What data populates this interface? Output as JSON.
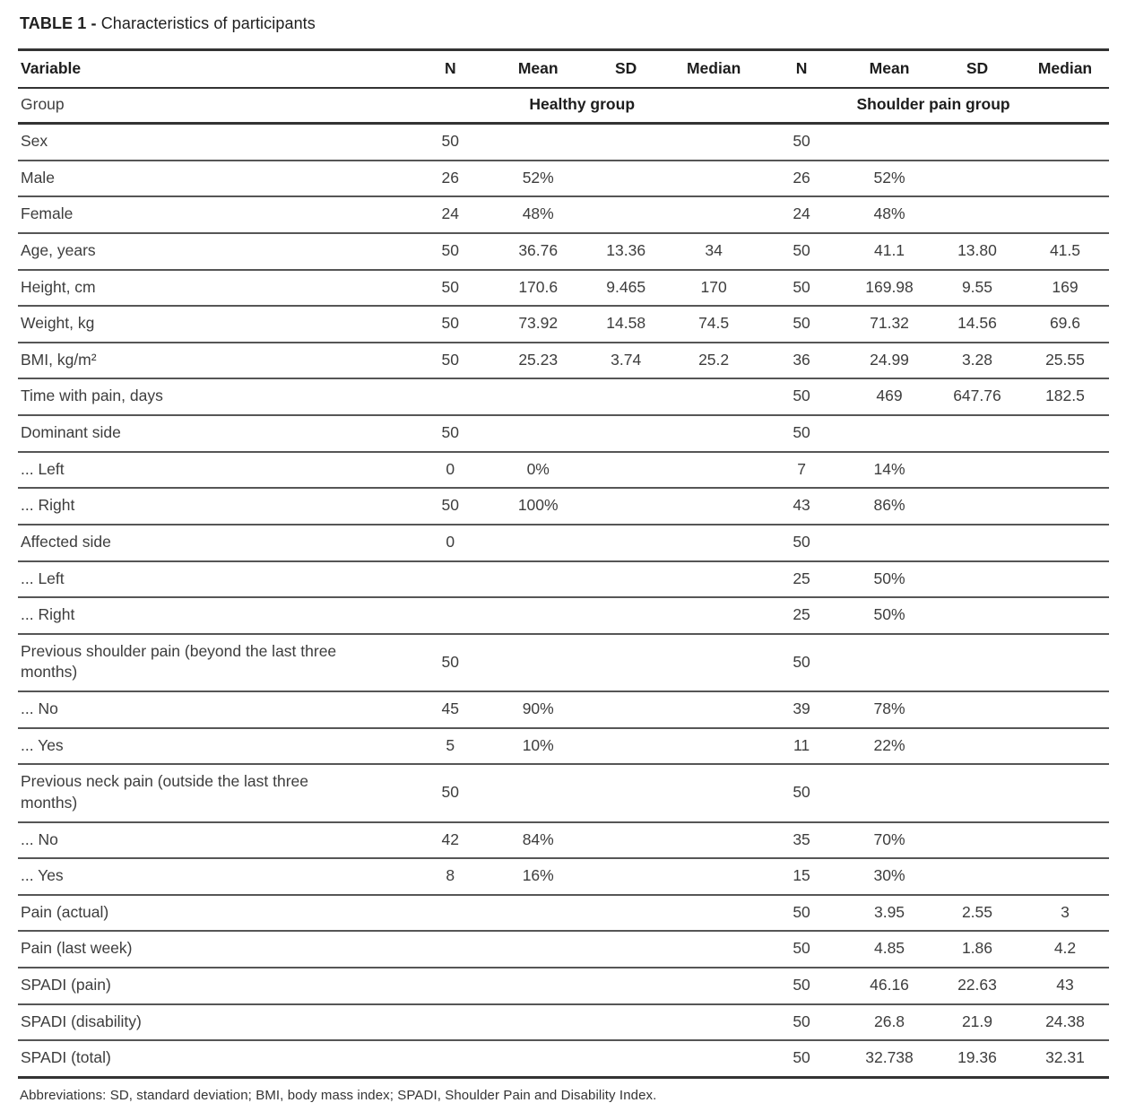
{
  "title": {
    "label": "TABLE 1 -",
    "text": "Characteristics of participants"
  },
  "table": {
    "columns": [
      "Variable",
      "N",
      "Mean",
      "SD",
      "Median",
      "N",
      "Mean",
      "SD",
      "Median"
    ],
    "group_row": {
      "label": "Group",
      "groups": [
        "Healthy group",
        "Shoulder pain group"
      ]
    },
    "rows": [
      {
        "cells": [
          "Sex",
          "50",
          "",
          "",
          "",
          "50",
          "",
          "",
          ""
        ]
      },
      {
        "cells": [
          "Male",
          "26",
          "52%",
          "",
          "",
          "26",
          "52%",
          "",
          ""
        ]
      },
      {
        "cells": [
          "Female",
          "24",
          "48%",
          "",
          "",
          "24",
          "48%",
          "",
          ""
        ]
      },
      {
        "cells": [
          "Age, years",
          "50",
          "36.76",
          "13.36",
          "34",
          "50",
          "41.1",
          "13.80",
          "41.5"
        ]
      },
      {
        "cells": [
          "Height, cm",
          "50",
          "170.6",
          "9.465",
          "170",
          "50",
          "169.98",
          "9.55",
          "169"
        ]
      },
      {
        "cells": [
          "Weight, kg",
          "50",
          "73.92",
          "14.58",
          "74.5",
          "50",
          "71.32",
          "14.56",
          "69.6"
        ]
      },
      {
        "cells": [
          "BMI, kg/m²",
          "50",
          "25.23",
          "3.74",
          "25.2",
          "36",
          "24.99",
          "3.28",
          "25.55"
        ]
      },
      {
        "cells": [
          "Time with pain, days",
          "",
          "",
          "",
          "",
          "50",
          "469",
          "647.76",
          "182.5"
        ]
      },
      {
        "cells": [
          "Dominant side",
          "50",
          "",
          "",
          "",
          "50",
          "",
          "",
          ""
        ]
      },
      {
        "cells": [
          "... Left",
          "0",
          "0%",
          "",
          "",
          "7",
          "14%",
          "",
          ""
        ]
      },
      {
        "cells": [
          "... Right",
          "50",
          "100%",
          "",
          "",
          "43",
          "86%",
          "",
          ""
        ]
      },
      {
        "cells": [
          "Affected side",
          "0",
          "",
          "",
          "",
          "50",
          "",
          "",
          ""
        ]
      },
      {
        "cells": [
          "... Left",
          "",
          "",
          "",
          "",
          "25",
          "50%",
          "",
          ""
        ]
      },
      {
        "cells": [
          "... Right",
          "",
          "",
          "",
          "",
          "25",
          "50%",
          "",
          ""
        ]
      },
      {
        "cells": [
          "Previous shoulder pain (beyond the last three months)",
          "50",
          "",
          "",
          "",
          "50",
          "",
          "",
          ""
        ]
      },
      {
        "cells": [
          "... No",
          "45",
          "90%",
          "",
          "",
          "39",
          "78%",
          "",
          ""
        ]
      },
      {
        "cells": [
          "... Yes",
          "5",
          "10%",
          "",
          "",
          "11",
          "22%",
          "",
          ""
        ]
      },
      {
        "cells": [
          "Previous neck pain (outside the last three months)",
          "50",
          "",
          "",
          "",
          "50",
          "",
          "",
          ""
        ]
      },
      {
        "cells": [
          "... No",
          "42",
          "84%",
          "",
          "",
          "35",
          "70%",
          "",
          ""
        ]
      },
      {
        "cells": [
          "... Yes",
          "8",
          "16%",
          "",
          "",
          "15",
          "30%",
          "",
          ""
        ]
      },
      {
        "cells": [
          "Pain (actual)",
          "",
          "",
          "",
          "",
          "50",
          "3.95",
          "2.55",
          "3"
        ]
      },
      {
        "cells": [
          "Pain (last week)",
          "",
          "",
          "",
          "",
          "50",
          "4.85",
          "1.86",
          "4.2"
        ]
      },
      {
        "cells": [
          "SPADI (pain)",
          "",
          "",
          "",
          "",
          "50",
          "46.16",
          "22.63",
          "43"
        ]
      },
      {
        "cells": [
          "SPADI (disability)",
          "",
          "",
          "",
          "",
          "50",
          "26.8",
          "21.9",
          "24.38"
        ]
      },
      {
        "cells": [
          "SPADI (total)",
          "",
          "",
          "",
          "",
          "50",
          "32.738",
          "19.36",
          "32.31"
        ]
      }
    ]
  },
  "footnote": "Abbreviations: SD, standard deviation; BMI, body mass index; SPADI, Shoulder Pain and Disability Index."
}
